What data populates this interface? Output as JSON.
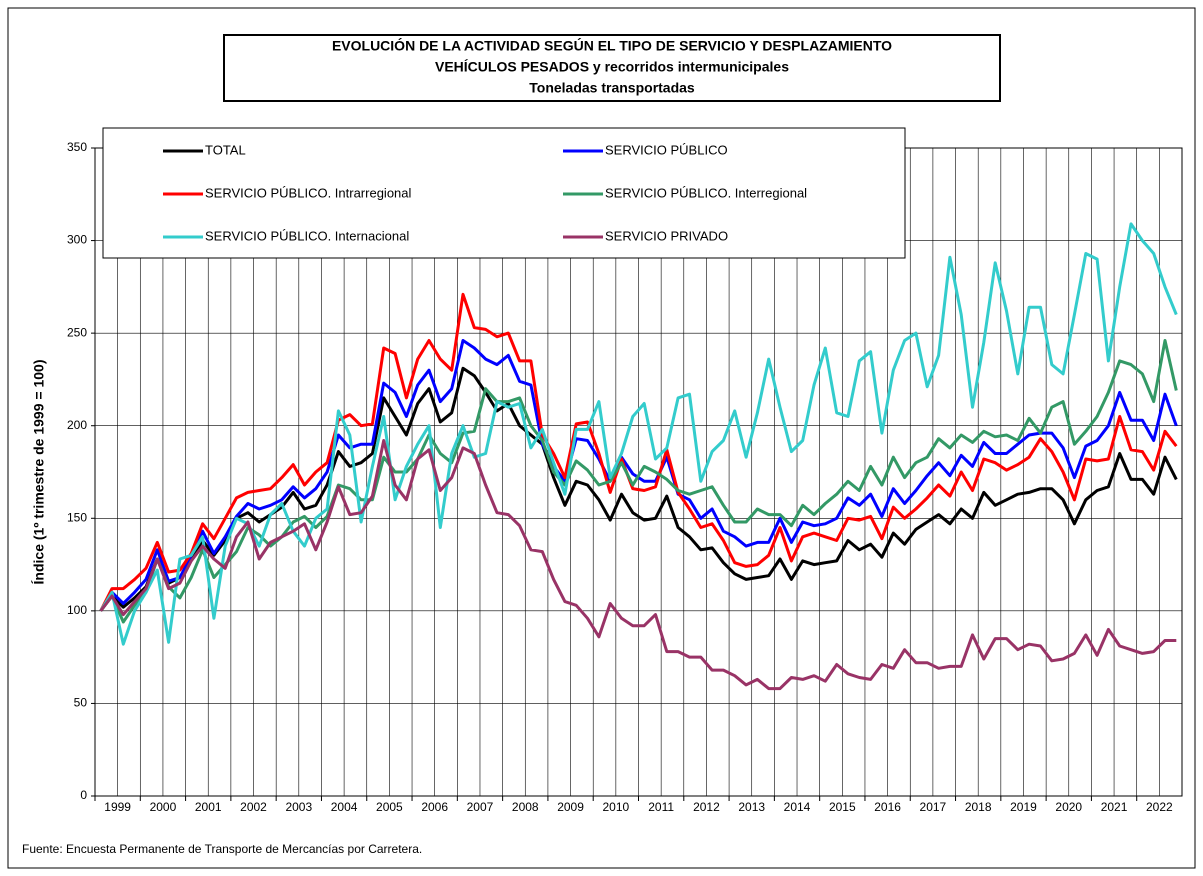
{
  "chart_data": {
    "type": "line",
    "title": [
      "EVOLUCIÓN  DE  LA  ACTIVIDAD  SEGÚN  EL  TIPO  DE  SERVICIO  Y  DESPLAZAMIENTO",
      "VEHÍCULOS  PESADOS  y  recorridos  intermunicipales",
      "Toneladas transportadas"
    ],
    "y_label": "Índice (1º trimestre de 1999 = 100)",
    "source": "Fuente: Encuesta Permanente de Transporte de Mercancías por Carretera.",
    "categories": [
      "1999",
      null,
      null,
      null,
      "2000",
      null,
      null,
      null,
      "2001",
      null,
      null,
      null,
      "2002",
      null,
      null,
      null,
      "2003",
      null,
      null,
      null,
      "2004",
      null,
      null,
      null,
      "2005",
      null,
      null,
      null,
      "2006",
      null,
      null,
      null,
      "2007",
      null,
      null,
      null,
      "2008",
      null,
      null,
      null,
      "2009",
      null,
      null,
      null,
      "2010",
      null,
      null,
      null,
      "2011",
      null,
      null,
      null,
      "2012",
      null,
      null,
      null,
      "2013",
      null,
      null,
      null,
      "2014",
      null,
      null,
      null,
      "2015",
      null,
      null,
      null,
      "2016",
      null,
      null,
      null,
      "2017",
      null,
      null,
      null,
      "2018",
      null,
      null,
      null,
      "2019",
      null,
      null,
      null,
      "2020",
      null,
      null,
      null,
      "2021",
      null,
      null,
      null,
      "2022",
      null,
      null,
      null
    ],
    "ylim": [
      0,
      350
    ],
    "yticks": [
      0,
      50,
      100,
      150,
      200,
      250,
      300,
      350
    ],
    "grid": true,
    "legend": "top-left",
    "series": [
      {
        "name": "TOTAL",
        "color": "#000000",
        "values": [
          100,
          108,
          102,
          107,
          113,
          128,
          115,
          118,
          128,
          138,
          130,
          138,
          150,
          153,
          148,
          152,
          156,
          164,
          155,
          157,
          168,
          186,
          178,
          180,
          185,
          215,
          205,
          195,
          212,
          220,
          202,
          207,
          231,
          227,
          218,
          208,
          212,
          200,
          195,
          190,
          172,
          157,
          170,
          168,
          160,
          149,
          163,
          153,
          149,
          150,
          162,
          145,
          140,
          133,
          134,
          126,
          120,
          117,
          118,
          119,
          128,
          117,
          127,
          125,
          126,
          127,
          138,
          133,
          136,
          129,
          142,
          136,
          144,
          148,
          152,
          147,
          155,
          150,
          164,
          157,
          160,
          163,
          164,
          166,
          166,
          160,
          147,
          160,
          165,
          167,
          185,
          171,
          171,
          163,
          183,
          171
        ]
      },
      {
        "name": "SERVICIO PÚBLICO",
        "color": "#0000ff",
        "values": [
          100,
          110,
          104,
          110,
          117,
          133,
          116,
          118,
          130,
          143,
          131,
          140,
          151,
          158,
          155,
          157,
          160,
          167,
          161,
          166,
          175,
          195,
          188,
          190,
          190,
          223,
          218,
          205,
          222,
          230,
          213,
          220,
          246,
          242,
          236,
          233,
          238,
          224,
          222,
          190,
          178,
          170,
          193,
          192,
          182,
          170,
          183,
          174,
          170,
          170,
          183,
          163,
          160,
          150,
          155,
          143,
          140,
          135,
          137,
          137,
          150,
          137,
          148,
          146,
          147,
          150,
          161,
          157,
          163,
          151,
          166,
          158,
          165,
          173,
          180,
          173,
          184,
          178,
          191,
          185,
          185,
          190,
          195,
          196,
          196,
          188,
          172,
          189,
          192,
          200,
          218,
          203,
          203,
          192,
          217,
          200
        ]
      },
      {
        "name": "SERVICIO PÚBLICO. Intrarregional",
        "color": "#ff0000",
        "values": [
          100,
          112,
          112,
          117,
          123,
          137,
          121,
          122,
          131,
          147,
          139,
          150,
          161,
          164,
          165,
          166,
          172,
          179,
          168,
          175,
          180,
          203,
          206,
          200,
          201,
          242,
          239,
          215,
          236,
          246,
          236,
          230,
          271,
          253,
          252,
          248,
          250,
          235,
          235,
          195,
          185,
          172,
          201,
          202,
          185,
          164,
          182,
          166,
          165,
          167,
          187,
          164,
          155,
          145,
          147,
          138,
          126,
          124,
          125,
          130,
          145,
          127,
          140,
          142,
          140,
          138,
          150,
          149,
          151,
          139,
          156,
          150,
          155,
          161,
          168,
          162,
          175,
          165,
          182,
          180,
          176,
          179,
          183,
          193,
          186,
          175,
          160,
          182,
          181,
          182,
          205,
          187,
          186,
          176,
          197,
          189
        ]
      },
      {
        "name": "SERVICIO PÚBLICO. Interregional",
        "color": "#339966",
        "values": [
          100,
          108,
          94,
          103,
          110,
          128,
          113,
          107,
          118,
          133,
          118,
          125,
          132,
          145,
          141,
          135,
          140,
          148,
          151,
          145,
          151,
          168,
          166,
          160,
          160,
          183,
          175,
          175,
          182,
          195,
          185,
          180,
          196,
          197,
          220,
          213,
          213,
          215,
          200,
          192,
          175,
          168,
          181,
          176,
          168,
          170,
          180,
          168,
          178,
          175,
          171,
          165,
          163,
          165,
          167,
          157,
          148,
          148,
          155,
          152,
          152,
          146,
          157,
          152,
          158,
          163,
          170,
          165,
          178,
          168,
          183,
          172,
          180,
          183,
          193,
          188,
          195,
          191,
          197,
          194,
          195,
          192,
          204,
          196,
          210,
          213,
          190,
          197,
          205,
          218,
          235,
          233,
          228,
          213,
          246,
          219
        ]
      },
      {
        "name": "SERVICIO PÚBLICO. Internacional",
        "color": "#33cccc",
        "values": [
          100,
          110,
          82,
          100,
          110,
          122,
          83,
          128,
          130,
          140,
          96,
          135,
          150,
          147,
          135,
          152,
          158,
          143,
          135,
          150,
          155,
          208,
          195,
          148,
          178,
          205,
          160,
          178,
          190,
          200,
          145,
          185,
          200,
          183,
          185,
          213,
          210,
          212,
          188,
          198,
          180,
          163,
          198,
          198,
          213,
          172,
          185,
          205,
          212,
          182,
          188,
          215,
          217,
          170,
          186,
          192,
          208,
          183,
          207,
          236,
          210,
          186,
          192,
          222,
          242,
          207,
          205,
          235,
          240,
          196,
          230,
          246,
          250,
          221,
          238,
          291,
          260,
          210,
          245,
          288,
          262,
          228,
          264,
          264,
          233,
          228,
          260,
          293,
          290,
          235,
          275,
          309,
          300,
          293,
          275,
          260
        ]
      },
      {
        "name": "SERVICIO PRIVADO",
        "color": "#993366",
        "values": [
          100,
          108,
          98,
          105,
          112,
          128,
          112,
          115,
          127,
          135,
          128,
          123,
          140,
          148,
          128,
          137,
          140,
          143,
          147,
          133,
          148,
          167,
          152,
          153,
          162,
          192,
          168,
          160,
          182,
          187,
          165,
          172,
          188,
          185,
          168,
          153,
          152,
          146,
          133,
          132,
          117,
          105,
          103,
          96,
          86,
          104,
          96,
          92,
          92,
          98,
          78,
          78,
          75,
          75,
          68,
          68,
          65,
          60,
          63,
          58,
          58,
          64,
          63,
          65,
          62,
          71,
          66,
          64,
          63,
          71,
          69,
          79,
          72,
          72,
          69,
          70,
          70,
          87,
          74,
          85,
          85,
          79,
          82,
          81,
          73,
          74,
          77,
          87,
          76,
          90,
          81,
          79,
          77,
          78,
          84,
          84
        ]
      }
    ]
  }
}
